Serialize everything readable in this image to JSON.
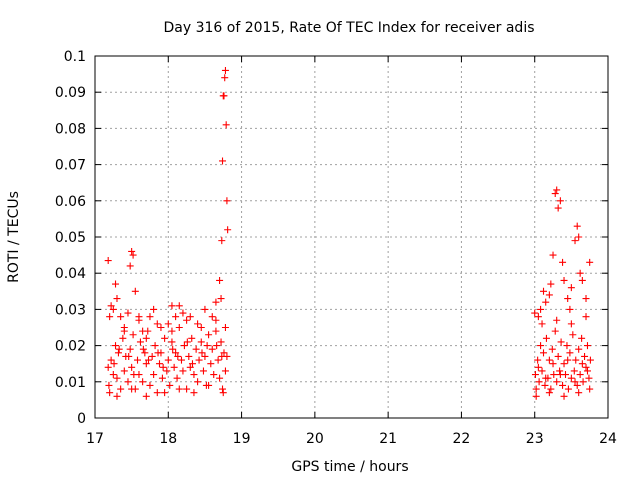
{
  "chart_data": {
    "type": "scatter",
    "title": "Day 316 of 2015, Rate Of TEC Index for receiver adis",
    "xlabel": "GPS time / hours",
    "ylabel": "ROTI / TECUs",
    "xlim": [
      17,
      24
    ],
    "ylim": [
      0,
      0.1
    ],
    "xticks": [
      17,
      18,
      19,
      20,
      21,
      22,
      23,
      24
    ],
    "xtick_labels": [
      "17",
      "18",
      "19",
      "20",
      "21",
      "22",
      "23",
      "24"
    ],
    "yticks": [
      0,
      0.01,
      0.02,
      0.03,
      0.04,
      0.05,
      0.06,
      0.07,
      0.08,
      0.09,
      0.1
    ],
    "ytick_labels": [
      "0",
      "0.01",
      "0.02",
      "0.03",
      "0.04",
      "0.05",
      "0.06",
      "0.07",
      "0.08",
      "0.09",
      "0.1"
    ],
    "grid": true,
    "marker": "+",
    "color": "#ff0000",
    "series": [
      {
        "name": "ROTI",
        "points": [
          [
            17.18,
            0.0435
          ],
          [
            17.2,
            0.028
          ],
          [
            17.22,
            0.031
          ],
          [
            17.25,
            0.03
          ],
          [
            17.28,
            0.037
          ],
          [
            17.3,
            0.033
          ],
          [
            17.35,
            0.028
          ],
          [
            17.4,
            0.024
          ],
          [
            17.45,
            0.029
          ],
          [
            17.48,
            0.042
          ],
          [
            17.5,
            0.046
          ],
          [
            17.52,
            0.045
          ],
          [
            17.55,
            0.035
          ],
          [
            17.6,
            0.028
          ],
          [
            17.65,
            0.024
          ],
          [
            17.7,
            0.022
          ],
          [
            17.75,
            0.028
          ],
          [
            17.8,
            0.03
          ],
          [
            17.9,
            0.025
          ],
          [
            18.0,
            0.026
          ],
          [
            18.05,
            0.031
          ],
          [
            18.1,
            0.028
          ],
          [
            18.15,
            0.031
          ],
          [
            18.2,
            0.029
          ],
          [
            18.3,
            0.028
          ],
          [
            18.4,
            0.026
          ],
          [
            18.5,
            0.03
          ],
          [
            18.6,
            0.028
          ],
          [
            18.65,
            0.032
          ],
          [
            18.7,
            0.038
          ],
          [
            18.72,
            0.033
          ],
          [
            18.73,
            0.049
          ],
          [
            18.74,
            0.071
          ],
          [
            18.75,
            0.089
          ],
          [
            18.76,
            0.089
          ],
          [
            18.77,
            0.094
          ],
          [
            18.78,
            0.096
          ],
          [
            18.79,
            0.081
          ],
          [
            18.8,
            0.06
          ],
          [
            18.81,
            0.052
          ],
          [
            17.18,
            0.014
          ],
          [
            17.19,
            0.009
          ],
          [
            17.2,
            0.007
          ],
          [
            17.22,
            0.016
          ],
          [
            17.25,
            0.012
          ],
          [
            17.28,
            0.02
          ],
          [
            17.3,
            0.011
          ],
          [
            17.32,
            0.018
          ],
          [
            17.35,
            0.008
          ],
          [
            17.38,
            0.022
          ],
          [
            17.4,
            0.013
          ],
          [
            17.42,
            0.017
          ],
          [
            17.45,
            0.01
          ],
          [
            17.48,
            0.019
          ],
          [
            17.5,
            0.014
          ],
          [
            17.52,
            0.023
          ],
          [
            17.55,
            0.008
          ],
          [
            17.58,
            0.016
          ],
          [
            17.6,
            0.012
          ],
          [
            17.62,
            0.021
          ],
          [
            17.65,
            0.01
          ],
          [
            17.68,
            0.018
          ],
          [
            17.7,
            0.015
          ],
          [
            17.72,
            0.024
          ],
          [
            17.75,
            0.009
          ],
          [
            17.78,
            0.017
          ],
          [
            17.8,
            0.012
          ],
          [
            17.82,
            0.02
          ],
          [
            17.85,
            0.007
          ],
          [
            17.88,
            0.015
          ],
          [
            17.9,
            0.018
          ],
          [
            17.92,
            0.011
          ],
          [
            17.95,
            0.022
          ],
          [
            17.98,
            0.013
          ],
          [
            18.0,
            0.016
          ],
          [
            18.02,
            0.009
          ],
          [
            18.05,
            0.021
          ],
          [
            18.08,
            0.014
          ],
          [
            18.1,
            0.018
          ],
          [
            18.12,
            0.011
          ],
          [
            18.15,
            0.025
          ],
          [
            18.18,
            0.016
          ],
          [
            18.2,
            0.013
          ],
          [
            18.22,
            0.02
          ],
          [
            18.25,
            0.008
          ],
          [
            18.28,
            0.017
          ],
          [
            18.3,
            0.014
          ],
          [
            18.32,
            0.022
          ],
          [
            18.35,
            0.012
          ],
          [
            18.38,
            0.019
          ],
          [
            18.4,
            0.01
          ],
          [
            18.42,
            0.016
          ],
          [
            18.45,
            0.021
          ],
          [
            18.48,
            0.013
          ],
          [
            18.5,
            0.017
          ],
          [
            18.52,
            0.009
          ],
          [
            18.55,
            0.023
          ],
          [
            18.58,
            0.015
          ],
          [
            18.6,
            0.019
          ],
          [
            18.62,
            0.012
          ],
          [
            18.65,
            0.024
          ],
          [
            18.68,
            0.016
          ],
          [
            18.7,
            0.011
          ],
          [
            18.72,
            0.021
          ],
          [
            18.74,
            0.008
          ],
          [
            18.76,
            0.018
          ],
          [
            18.78,
            0.013
          ],
          [
            18.8,
            0.017
          ],
          [
            17.3,
            0.006
          ],
          [
            17.5,
            0.008
          ],
          [
            17.7,
            0.006
          ],
          [
            17.95,
            0.007
          ],
          [
            18.15,
            0.008
          ],
          [
            18.35,
            0.007
          ],
          [
            18.55,
            0.009
          ],
          [
            18.75,
            0.007
          ],
          [
            17.4,
            0.025
          ],
          [
            17.6,
            0.027
          ],
          [
            17.85,
            0.026
          ],
          [
            18.05,
            0.024
          ],
          [
            18.25,
            0.027
          ],
          [
            18.45,
            0.025
          ],
          [
            18.65,
            0.027
          ],
          [
            18.78,
            0.025
          ],
          [
            17.26,
            0.015
          ],
          [
            17.46,
            0.017
          ],
          [
            17.66,
            0.019
          ],
          [
            17.86,
            0.018
          ],
          [
            18.06,
            0.019
          ],
          [
            18.26,
            0.021
          ],
          [
            18.46,
            0.018
          ],
          [
            18.66,
            0.02
          ],
          [
            17.33,
            0.019
          ],
          [
            17.53,
            0.012
          ],
          [
            17.73,
            0.016
          ],
          [
            17.93,
            0.014
          ],
          [
            18.13,
            0.017
          ],
          [
            18.33,
            0.015
          ],
          [
            18.53,
            0.02
          ],
          [
            18.73,
            0.017
          ],
          [
            23.0,
            0.029
          ],
          [
            23.05,
            0.028
          ],
          [
            23.08,
            0.03
          ],
          [
            23.12,
            0.035
          ],
          [
            23.15,
            0.032
          ],
          [
            23.2,
            0.034
          ],
          [
            23.22,
            0.037
          ],
          [
            23.25,
            0.045
          ],
          [
            23.28,
            0.062
          ],
          [
            23.3,
            0.063
          ],
          [
            23.32,
            0.058
          ],
          [
            23.35,
            0.06
          ],
          [
            23.38,
            0.043
          ],
          [
            23.4,
            0.038
          ],
          [
            23.45,
            0.033
          ],
          [
            23.5,
            0.036
          ],
          [
            23.55,
            0.049
          ],
          [
            23.58,
            0.053
          ],
          [
            23.6,
            0.05
          ],
          [
            23.62,
            0.04
          ],
          [
            23.65,
            0.038
          ],
          [
            23.7,
            0.033
          ],
          [
            23.75,
            0.043
          ],
          [
            23.48,
            0.03
          ],
          [
            23.01,
            0.012
          ],
          [
            23.02,
            0.008
          ],
          [
            23.04,
            0.016
          ],
          [
            23.06,
            0.01
          ],
          [
            23.08,
            0.02
          ],
          [
            23.1,
            0.013
          ],
          [
            23.12,
            0.018
          ],
          [
            23.14,
            0.009
          ],
          [
            23.16,
            0.022
          ],
          [
            23.18,
            0.011
          ],
          [
            23.2,
            0.016
          ],
          [
            23.22,
            0.008
          ],
          [
            23.24,
            0.019
          ],
          [
            23.26,
            0.012
          ],
          [
            23.28,
            0.024
          ],
          [
            23.3,
            0.01
          ],
          [
            23.32,
            0.017
          ],
          [
            23.34,
            0.013
          ],
          [
            23.36,
            0.021
          ],
          [
            23.38,
            0.009
          ],
          [
            23.4,
            0.015
          ],
          [
            23.42,
            0.012
          ],
          [
            23.44,
            0.02
          ],
          [
            23.46,
            0.008
          ],
          [
            23.48,
            0.018
          ],
          [
            23.5,
            0.011
          ],
          [
            23.52,
            0.023
          ],
          [
            23.54,
            0.013
          ],
          [
            23.56,
            0.016
          ],
          [
            23.58,
            0.009
          ],
          [
            23.6,
            0.019
          ],
          [
            23.62,
            0.012
          ],
          [
            23.64,
            0.022
          ],
          [
            23.66,
            0.01
          ],
          [
            23.68,
            0.017
          ],
          [
            23.7,
            0.014
          ],
          [
            23.72,
            0.02
          ],
          [
            23.74,
            0.011
          ],
          [
            23.76,
            0.016
          ],
          [
            23.02,
            0.006
          ],
          [
            23.2,
            0.007
          ],
          [
            23.4,
            0.006
          ],
          [
            23.6,
            0.007
          ],
          [
            23.75,
            0.008
          ],
          [
            23.1,
            0.026
          ],
          [
            23.3,
            0.027
          ],
          [
            23.5,
            0.026
          ],
          [
            23.7,
            0.028
          ],
          [
            23.05,
            0.014
          ],
          [
            23.25,
            0.015
          ],
          [
            23.45,
            0.016
          ],
          [
            23.65,
            0.015
          ],
          [
            23.15,
            0.011
          ],
          [
            23.35,
            0.012
          ],
          [
            23.55,
            0.01
          ],
          [
            23.72,
            0.013
          ]
        ]
      }
    ]
  }
}
